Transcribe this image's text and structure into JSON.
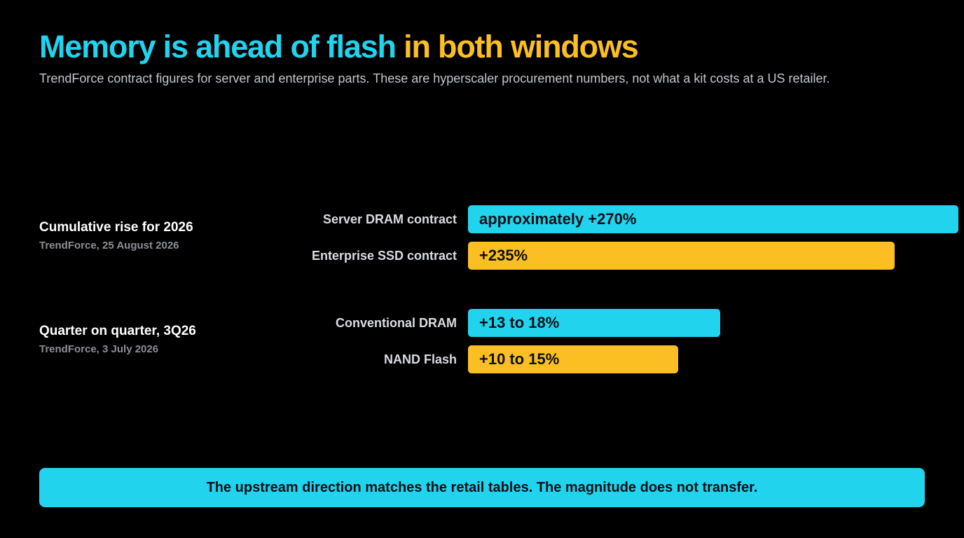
{
  "title": {
    "part1": "Memory is ahead of flash",
    "part2": " in both windows"
  },
  "subtitle": "TrendForce contract figures for server and enterprise parts. These are hyperscaler procurement numbers, not what a kit costs at a US retailer.",
  "colors": {
    "dram": "#22d3ee",
    "flash": "#fbbf24",
    "background": "#000000"
  },
  "chart_data": {
    "type": "bar",
    "orientation": "horizontal",
    "groups": [
      {
        "title": "Cumulative rise for 2026",
        "source": "TrendForce, 25 August 2026",
        "bars": [
          {
            "category": "Server DRAM contract",
            "label": "approximately +270%",
            "value": 270,
            "color": "#22d3ee"
          },
          {
            "category": "Enterprise SSD contract",
            "label": "+235%",
            "value": 235,
            "color": "#fbbf24"
          }
        ]
      },
      {
        "title": "Quarter on quarter, 3Q26",
        "source": "TrendForce, 3 July 2026",
        "bars": [
          {
            "category": "Conventional DRAM",
            "label": "+13 to 18%",
            "value": [
              13,
              18
            ],
            "color": "#22d3ee"
          },
          {
            "category": "NAND Flash",
            "label": "+10 to 15%",
            "value": [
              10,
              15
            ],
            "color": "#fbbf24"
          }
        ]
      }
    ]
  },
  "footer": "The upstream direction matches the retail tables. The magnitude does not transfer."
}
